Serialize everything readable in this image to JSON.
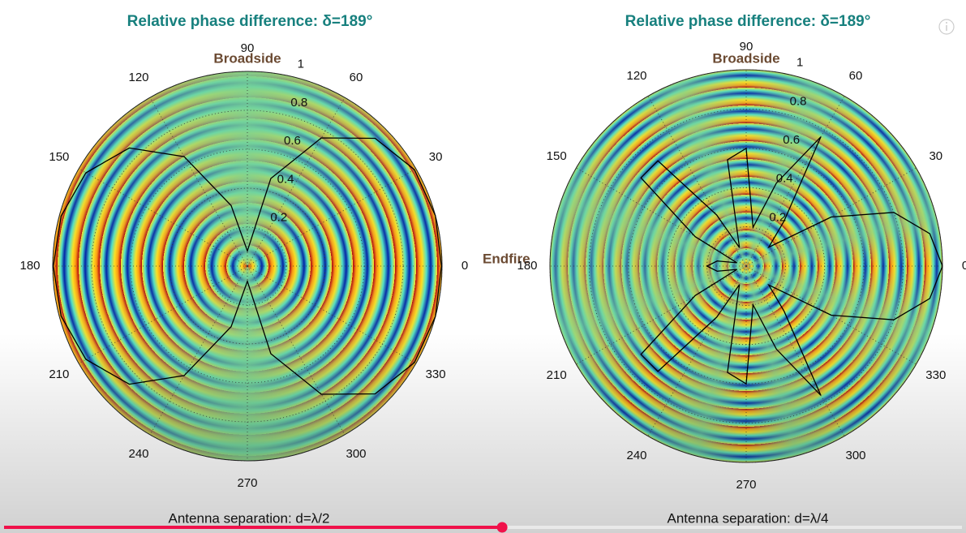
{
  "chart_data": [
    {
      "type": "polar",
      "title": "Relative phase difference: δ=189°",
      "annotations": [
        "Broadside",
        "Endfire"
      ],
      "caption": "Antenna separation: d=λ/2",
      "thetaticks": [
        0,
        30,
        60,
        90,
        120,
        150,
        180,
        210,
        240,
        270,
        300,
        330
      ],
      "rlim": [
        0,
        1
      ],
      "rticks": [
        0.2,
        0.4,
        0.6,
        0.8,
        1
      ],
      "color": "#000000",
      "theta": [
        0,
        15,
        30,
        45,
        60,
        75,
        90,
        105,
        120,
        135,
        150,
        165,
        180,
        195,
        210,
        225,
        240,
        255,
        270,
        285,
        300,
        315,
        330,
        345,
        360
      ],
      "values": [
        0.997,
        1.0,
        0.991,
        0.928,
        0.76,
        0.466,
        0.078,
        0.322,
        0.649,
        0.858,
        0.958,
        0.991,
        0.997,
        0.991,
        0.958,
        0.858,
        0.649,
        0.322,
        0.078,
        0.466,
        0.76,
        0.928,
        0.991,
        1.0,
        0.997
      ]
    },
    {
      "type": "polar",
      "title": "Relative phase difference: δ=189°",
      "annotations": [
        "Broadside"
      ],
      "caption": "Antenna separation: d=λ/4",
      "thetaticks": [
        0,
        30,
        60,
        90,
        120,
        150,
        180,
        210,
        240,
        270,
        300,
        330
      ],
      "rlim": [
        0,
        1
      ],
      "rticks": [
        0.2,
        0.4,
        0.6,
        0.8,
        1
      ],
      "color": "#000000",
      "theta": [
        0,
        10,
        20,
        30,
        40,
        50,
        60,
        70,
        80,
        90,
        100,
        110,
        120,
        130,
        140,
        150,
        160,
        170,
        180,
        190,
        200,
        210,
        220,
        230,
        240,
        250,
        260,
        270,
        280,
        290,
        300,
        310,
        320,
        330,
        340,
        350,
        360
      ],
      "values": [
        1.0,
        0.95,
        0.8,
        0.5,
        0.15,
        0.3,
        0.76,
        0.45,
        0.2,
        0.6,
        0.55,
        0.1,
        0.3,
        0.7,
        0.7,
        0.3,
        0.05,
        0.15,
        0.2,
        0.15,
        0.05,
        0.3,
        0.7,
        0.7,
        0.3,
        0.1,
        0.55,
        0.6,
        0.2,
        0.45,
        0.76,
        0.3,
        0.15,
        0.5,
        0.8,
        0.95,
        1.0
      ]
    }
  ],
  "player": {
    "progress": 0.52
  }
}
